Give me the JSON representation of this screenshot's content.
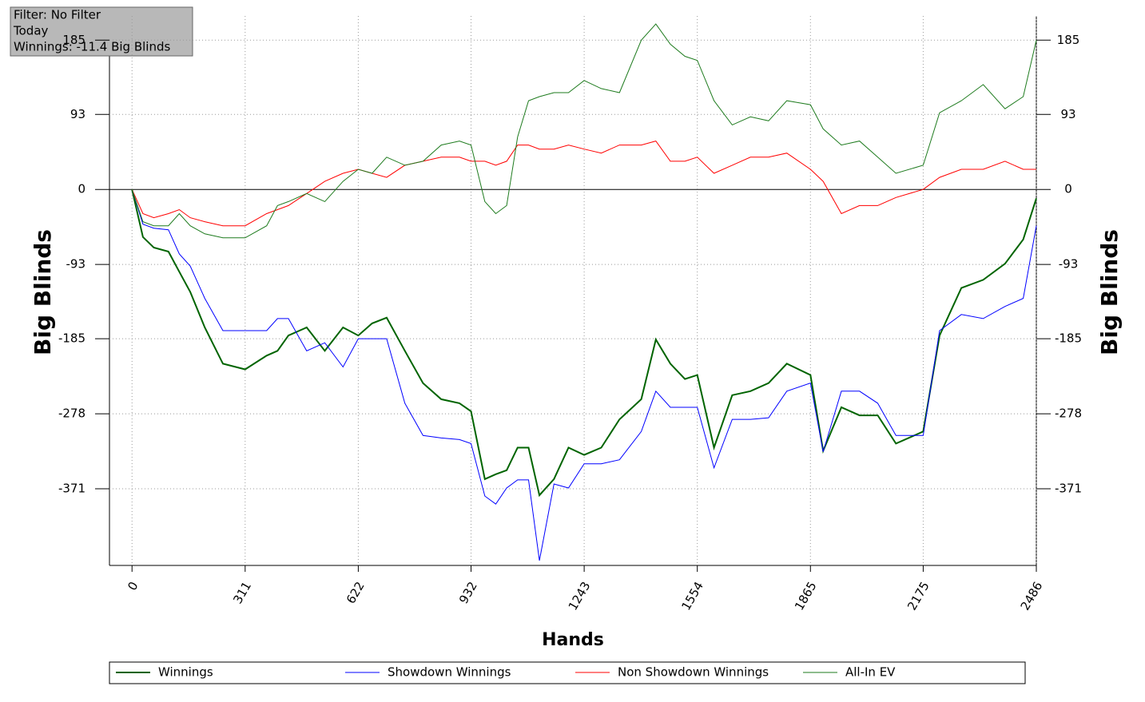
{
  "chart_data": {
    "type": "line",
    "annotations": [
      "Filter: No Filter",
      "Today",
      "Winnings: -11.4 Big Blinds"
    ],
    "x_label": "Hands",
    "y_label": "Big Blinds",
    "xlim": [
      -62,
      2486
    ],
    "xticks": [
      0,
      311,
      622,
      932,
      1243,
      1554,
      1865,
      2175,
      2486
    ],
    "ylim": [
      -466,
      215
    ],
    "yticks": [
      185,
      93,
      0,
      -93,
      -185,
      -278,
      -371
    ],
    "grid": true,
    "x": [
      0,
      30,
      60,
      100,
      130,
      160,
      200,
      250,
      311,
      370,
      400,
      430,
      480,
      530,
      580,
      622,
      660,
      700,
      750,
      800,
      850,
      900,
      932,
      970,
      1000,
      1030,
      1060,
      1090,
      1120,
      1160,
      1200,
      1243,
      1290,
      1340,
      1400,
      1440,
      1480,
      1520,
      1554,
      1600,
      1650,
      1700,
      1750,
      1800,
      1865,
      1900,
      1950,
      2000,
      2050,
      2100,
      2175,
      2220,
      2280,
      2340,
      2400,
      2450,
      2486
    ],
    "series": [
      {
        "name": "Winnings",
        "color": "#006400",
        "values": [
          0,
          -59,
          -72,
          -77,
          -102,
          -127,
          -171,
          -216,
          -223,
          -206,
          -200,
          -181,
          -171,
          -200,
          -171,
          -181,
          -166,
          -159,
          -200,
          -240,
          -260,
          -265,
          -275,
          -359,
          -353,
          -348,
          -320,
          -320,
          -379,
          -359,
          -320,
          -329,
          -320,
          -285,
          -260,
          -186,
          -216,
          -235,
          -230,
          -320,
          -255,
          -250,
          -240,
          -216,
          -230,
          -324,
          -270,
          -280,
          -280,
          -315,
          -300,
          -181,
          -122,
          -112,
          -92,
          -62,
          -11
        ]
      },
      {
        "name": "Showdown Winnings",
        "color": "#0000ff",
        "values": [
          0,
          -43,
          -48,
          -50,
          -80,
          -95,
          -135,
          -175,
          -175,
          -175,
          -160,
          -160,
          -200,
          -190,
          -220,
          -185,
          -185,
          -185,
          -265,
          -305,
          -308,
          -310,
          -315,
          -380,
          -390,
          -370,
          -360,
          -360,
          -460,
          -365,
          -370,
          -340,
          -340,
          -335,
          -300,
          -250,
          -270,
          -270,
          -270,
          -345,
          -285,
          -285,
          -283,
          -250,
          -240,
          -325,
          -250,
          -250,
          -265,
          -305,
          -305,
          -175,
          -155,
          -160,
          -145,
          -135,
          -45
        ]
      },
      {
        "name": "Non Showdown Winnings",
        "color": "#ff0000",
        "values": [
          0,
          -30,
          -35,
          -30,
          -25,
          -35,
          -40,
          -45,
          -45,
          -30,
          -25,
          -20,
          -5,
          10,
          20,
          25,
          20,
          15,
          30,
          35,
          40,
          40,
          35,
          35,
          30,
          35,
          55,
          55,
          50,
          50,
          55,
          50,
          45,
          55,
          55,
          60,
          35,
          35,
          40,
          20,
          30,
          40,
          40,
          45,
          25,
          10,
          -30,
          -20,
          -20,
          -10,
          0,
          15,
          25,
          25,
          35,
          25,
          25
        ]
      },
      {
        "name": "All-In EV",
        "color": "#1e7b1e",
        "values": [
          0,
          -40,
          -45,
          -45,
          -30,
          -45,
          -55,
          -60,
          -60,
          -45,
          -20,
          -15,
          -5,
          -15,
          10,
          25,
          20,
          40,
          30,
          35,
          55,
          60,
          55,
          -15,
          -30,
          -20,
          65,
          110,
          115,
          120,
          120,
          135,
          125,
          120,
          185,
          205,
          180,
          165,
          160,
          110,
          80,
          90,
          85,
          110,
          105,
          75,
          55,
          60,
          40,
          20,
          30,
          95,
          110,
          130,
          100,
          115,
          185
        ]
      }
    ]
  }
}
